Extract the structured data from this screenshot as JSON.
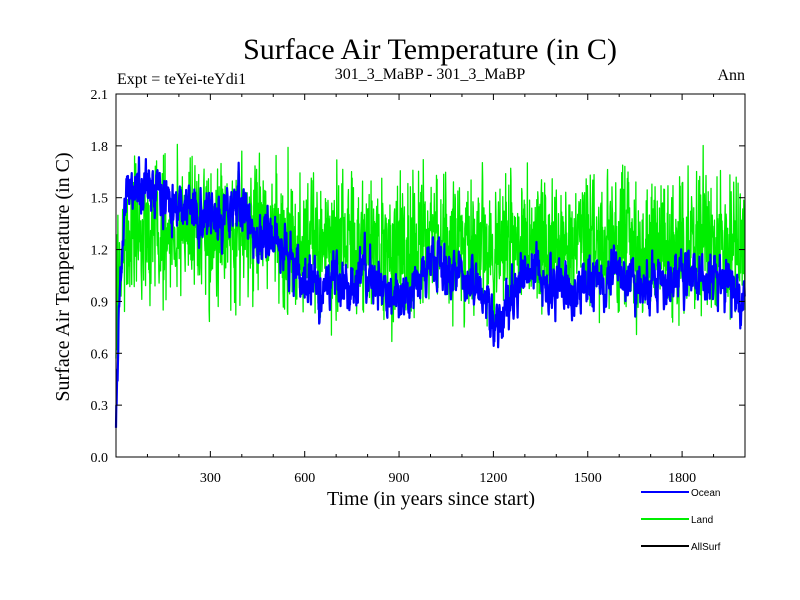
{
  "chart_data": {
    "type": "line",
    "title": "Surface Air Temperature (in C)",
    "subtitle_left": "Expt = teYei-teYdi1",
    "subtitle_center": "301_3_MaBP - 301_3_MaBP",
    "subtitle_right": "Ann",
    "xlabel": "Time (in years since start)",
    "ylabel": "Surface Air Temperature (in C)",
    "xlim": [
      0,
      2000
    ],
    "ylim": [
      0.0,
      2.1
    ],
    "xticks": [
      300,
      600,
      900,
      1200,
      1500,
      1800
    ],
    "yticks": [
      0.0,
      0.3,
      0.6,
      0.9,
      1.2,
      1.5,
      1.8,
      2.1
    ],
    "ytick_labels": [
      "0.0",
      "0.3",
      "0.6",
      "0.9",
      "1.2",
      "1.5",
      "1.8",
      "2.1"
    ],
    "legend_position": "bottom-right, below plot",
    "series": [
      {
        "name": "Ocean",
        "color": "#0000ff",
        "anchors_x": [
          0,
          10,
          30,
          60,
          100,
          130,
          160,
          200,
          250,
          300,
          340,
          380,
          420,
          450,
          480,
          520,
          560,
          600,
          650,
          700,
          750,
          800,
          850,
          900,
          950,
          1000,
          1050,
          1100,
          1150,
          1200,
          1225,
          1250,
          1300,
          1350,
          1400,
          1450,
          1500,
          1550,
          1600,
          1650,
          1700,
          1750,
          1800,
          1850,
          1900,
          1950,
          2000
        ],
        "anchors_y": [
          0.15,
          0.9,
          1.5,
          1.58,
          1.57,
          1.63,
          1.52,
          1.48,
          1.42,
          1.35,
          1.38,
          1.48,
          1.4,
          1.22,
          1.26,
          1.25,
          1.12,
          1.02,
          0.97,
          1.03,
          1.0,
          1.06,
          0.95,
          0.93,
          1.02,
          1.12,
          1.08,
          1.06,
          0.95,
          0.82,
          0.78,
          0.86,
          1.04,
          1.06,
          0.96,
          0.98,
          0.99,
          1.01,
          1.04,
          0.99,
          0.98,
          1.03,
          1.04,
          1.05,
          1.07,
          0.97,
          0.95
        ],
        "noise": 0.065
      },
      {
        "name": "Land",
        "color": "#00ee00",
        "anchors_x": [
          0,
          20,
          60,
          100,
          150,
          200,
          250,
          300,
          350,
          400,
          450,
          500,
          550,
          600,
          650,
          700,
          750,
          800,
          850,
          900,
          950,
          1000,
          1050,
          1100,
          1150,
          1200,
          1250,
          1300,
          1350,
          1400,
          1450,
          1500,
          1550,
          1600,
          1650,
          1700,
          1750,
          1800,
          1850,
          1900,
          1950,
          2000
        ],
        "anchors_y": [
          0.9,
          1.2,
          1.27,
          1.31,
          1.3,
          1.32,
          1.3,
          1.28,
          1.27,
          1.35,
          1.34,
          1.28,
          1.24,
          1.24,
          1.22,
          1.21,
          1.22,
          1.25,
          1.2,
          1.19,
          1.22,
          1.27,
          1.26,
          1.24,
          1.22,
          1.19,
          1.2,
          1.25,
          1.27,
          1.22,
          1.22,
          1.26,
          1.24,
          1.23,
          1.21,
          1.21,
          1.23,
          1.22,
          1.23,
          1.26,
          1.25,
          1.24
        ],
        "noise": 0.2
      },
      {
        "name": "AllSurf",
        "color": "#000000",
        "anchors_x": [
          0,
          10,
          30,
          60,
          100,
          130,
          160,
          200,
          250,
          300,
          340,
          380,
          420,
          450,
          480,
          520,
          560,
          600,
          650,
          700,
          750,
          800,
          850,
          900,
          950,
          1000,
          1050,
          1100,
          1150,
          1200,
          1225,
          1250,
          1300,
          1350,
          1400,
          1450,
          1500,
          1550,
          1600,
          1650,
          1700,
          1750,
          1800,
          1850,
          1900,
          1950,
          2000
        ],
        "anchors_y": [
          0.15,
          0.9,
          1.5,
          1.58,
          1.57,
          1.63,
          1.52,
          1.48,
          1.42,
          1.35,
          1.38,
          1.48,
          1.4,
          1.22,
          1.26,
          1.25,
          1.12,
          1.02,
          0.97,
          1.03,
          1.0,
          1.06,
          0.95,
          0.93,
          1.02,
          1.12,
          1.08,
          1.06,
          0.95,
          0.82,
          0.78,
          0.86,
          1.04,
          1.06,
          0.96,
          0.98,
          0.99,
          1.01,
          1.04,
          0.99,
          0.98,
          1.03,
          1.04,
          1.05,
          1.07,
          0.97,
          0.95
        ],
        "noise": 0.06
      }
    ]
  }
}
